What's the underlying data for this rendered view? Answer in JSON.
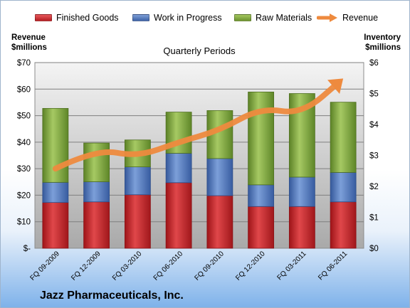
{
  "chart_data": {
    "type": "bar",
    "stacked": true,
    "title": "Quarterly Periods",
    "company": "Jazz Pharmaceuticals, Inc.",
    "categories": [
      "FQ 09-2009",
      "FQ 12-2009",
      "FQ 03-2010",
      "FQ 06-2010",
      "FQ 09-2010",
      "FQ 12-2010",
      "FQ 03-2011",
      "FQ 06-2011"
    ],
    "series": [
      {
        "name": "Finished Goods",
        "color": "#c8262a",
        "axis": "right",
        "values": [
          1.48,
          1.5,
          1.73,
          2.12,
          1.7,
          1.35,
          1.35,
          1.5
        ]
      },
      {
        "name": "Work in Progress",
        "color": "#4a72b8",
        "axis": "right",
        "values": [
          0.65,
          0.65,
          0.9,
          0.95,
          1.2,
          0.7,
          0.95,
          0.95
        ]
      },
      {
        "name": "Raw Materials",
        "color": "#7aa33a",
        "axis": "right",
        "values": [
          2.39,
          1.25,
          0.87,
          1.33,
          1.55,
          3.0,
          2.7,
          2.27
        ]
      }
    ],
    "line_series": {
      "name": "Revenue",
      "color": "#ee8a3e",
      "axis": "left",
      "values": [
        30,
        37.5,
        34.5,
        40,
        44.5,
        53,
        50.5,
        64
      ]
    },
    "left_axis": {
      "label_line1": "Revenue",
      "label_line2": "$millions",
      "min": 0,
      "max": 70,
      "ticks": [
        "$-",
        "$10",
        "$20",
        "$30",
        "$40",
        "$50",
        "$60",
        "$70"
      ]
    },
    "right_axis": {
      "label_line1": "Inventory",
      "label_line2": "$millions",
      "min": 0,
      "max": 6,
      "ticks": [
        "$0",
        "$1",
        "$2",
        "$3",
        "$4",
        "$5",
        "$6"
      ]
    },
    "grid": true,
    "legend_position": "top"
  }
}
